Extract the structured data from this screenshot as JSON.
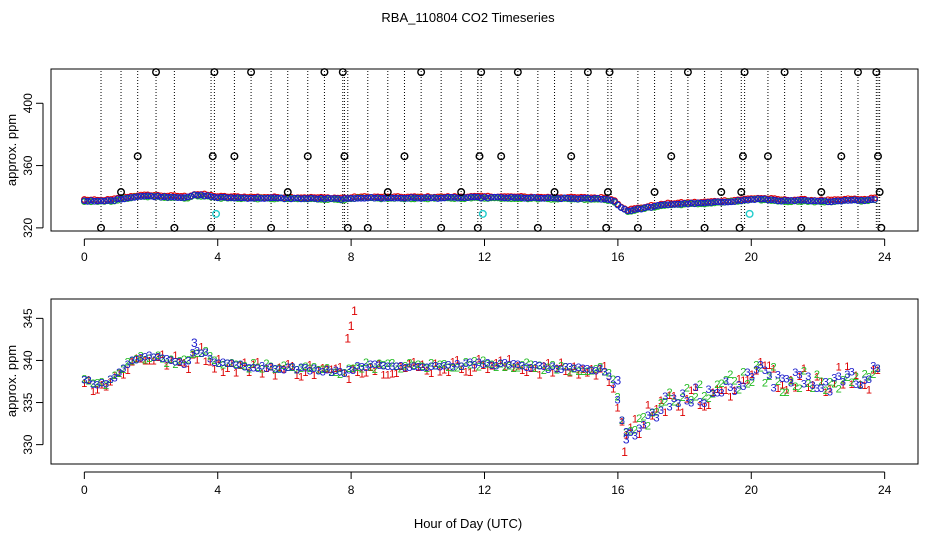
{
  "title": "RBA_110804  CO2 Timeseries",
  "xlabel": "Hour of Day (UTC)",
  "chart_data": [
    {
      "type": "scatter",
      "panel": "top",
      "ylabel": "approx. ppm",
      "xlim": [
        -1,
        25
      ],
      "ylim": [
        318,
        422
      ],
      "xticks": [
        0,
        4,
        8,
        12,
        16,
        20,
        24
      ],
      "xtick_labels": [
        "0",
        "4",
        "8",
        "12",
        "16",
        "20",
        "24"
      ],
      "yticks": [
        320,
        360,
        400
      ],
      "ytick_labels": [
        "320",
        "360",
        "400"
      ],
      "spike_times": [
        0.5,
        1.1,
        1.6,
        2.15,
        2.7,
        3.8,
        3.9,
        4.5,
        5.0,
        5.6,
        6.1,
        6.7,
        7.2,
        7.75,
        7.8,
        7.9,
        8.5,
        9.1,
        9.6,
        10.1,
        10.7,
        11.3,
        11.8,
        11.9,
        12.5,
        13.0,
        13.6,
        14.1,
        14.6,
        15.1,
        15.7,
        15.8,
        16.6,
        17.1,
        17.6,
        18.1,
        18.6,
        19.1,
        19.7,
        19.8,
        20.5,
        21.0,
        21.5,
        22.1,
        22.7,
        23.2,
        23.75,
        23.8,
        23.85
      ],
      "black_circles": [
        [
          0.5,
          320
        ],
        [
          1.1,
          343
        ],
        [
          1.6,
          366
        ],
        [
          2.15,
          420
        ],
        [
          2.7,
          320
        ],
        [
          3.8,
          320
        ],
        [
          3.85,
          366
        ],
        [
          3.9,
          420
        ],
        [
          4.5,
          366
        ],
        [
          5.0,
          420
        ],
        [
          5.6,
          320
        ],
        [
          6.1,
          343
        ],
        [
          6.7,
          366
        ],
        [
          7.2,
          420
        ],
        [
          7.75,
          420
        ],
        [
          7.8,
          366
        ],
        [
          7.9,
          320
        ],
        [
          8.5,
          320
        ],
        [
          9.1,
          343
        ],
        [
          9.6,
          366
        ],
        [
          10.1,
          420
        ],
        [
          10.7,
          320
        ],
        [
          11.3,
          343
        ],
        [
          11.8,
          320
        ],
        [
          11.85,
          366
        ],
        [
          11.9,
          420
        ],
        [
          12.5,
          366
        ],
        [
          13.0,
          420
        ],
        [
          13.6,
          320
        ],
        [
          14.1,
          343
        ],
        [
          14.6,
          366
        ],
        [
          15.1,
          420
        ],
        [
          15.65,
          320
        ],
        [
          15.7,
          343
        ],
        [
          15.75,
          420
        ],
        [
          16.6,
          320
        ],
        [
          17.1,
          343
        ],
        [
          17.6,
          366
        ],
        [
          18.1,
          420
        ],
        [
          18.6,
          320
        ],
        [
          19.1,
          343
        ],
        [
          19.65,
          320
        ],
        [
          19.7,
          343
        ],
        [
          19.75,
          366
        ],
        [
          19.8,
          420
        ],
        [
          20.5,
          366
        ],
        [
          21.0,
          420
        ],
        [
          21.5,
          320
        ],
        [
          22.1,
          343
        ],
        [
          22.7,
          366
        ],
        [
          23.2,
          420
        ],
        [
          23.75,
          420
        ],
        [
          23.8,
          366
        ],
        [
          23.85,
          343
        ],
        [
          23.9,
          320
        ]
      ],
      "cyan_circles": [
        [
          3.95,
          329
        ],
        [
          11.95,
          329
        ],
        [
          19.95,
          329
        ]
      ],
      "series_note": "Dense red (1), green (2) and blue (3) circle series near 336-340 ppm with a dip to ~327 ppm at hour 16"
    },
    {
      "type": "scatter",
      "panel": "bottom",
      "ylabel": "approx. ppm",
      "xlim": [
        -1,
        25
      ],
      "ylim": [
        327.7,
        347.3
      ],
      "xticks": [
        0,
        4,
        8,
        12,
        16,
        20,
        24
      ],
      "xtick_labels": [
        "0",
        "4",
        "8",
        "12",
        "16",
        "20",
        "24"
      ],
      "yticks": [
        330,
        335,
        340,
        345
      ],
      "ytick_labels": [
        "330",
        "335",
        "340",
        "345"
      ],
      "series": [
        {
          "name": "1",
          "marker": "1",
          "color": "#dd0000"
        },
        {
          "name": "2",
          "marker": "2",
          "color": "#22bb22"
        },
        {
          "name": "3",
          "marker": "3",
          "color": "#1a1acc"
        }
      ],
      "anchors": [
        [
          0.0,
          337.5
        ],
        [
          0.4,
          337.0
        ],
        [
          0.8,
          337.5
        ],
        [
          1.2,
          339.0
        ],
        [
          1.6,
          340.2
        ],
        [
          2.0,
          340.4
        ],
        [
          2.4,
          340.0
        ],
        [
          2.8,
          339.8
        ],
        [
          3.1,
          339.5
        ],
        [
          3.3,
          341.0
        ],
        [
          3.6,
          340.8
        ],
        [
          4.0,
          339.5
        ],
        [
          5.0,
          339.2
        ],
        [
          6.0,
          339.0
        ],
        [
          7.0,
          338.8
        ],
        [
          7.9,
          338.5
        ],
        [
          8.2,
          339.3
        ],
        [
          9.0,
          339.2
        ],
        [
          10.0,
          339.2
        ],
        [
          11.0,
          339.3
        ],
        [
          11.8,
          339.5
        ],
        [
          12.2,
          339.5
        ],
        [
          13.0,
          339.3
        ],
        [
          14.0,
          339.0
        ],
        [
          15.0,
          338.8
        ],
        [
          15.6,
          338.7
        ],
        [
          15.9,
          337.0
        ],
        [
          16.1,
          333.0
        ],
        [
          16.3,
          331.0
        ],
        [
          16.6,
          332.0
        ],
        [
          17.0,
          333.5
        ],
        [
          17.5,
          335.0
        ],
        [
          18.0,
          335.5
        ],
        [
          18.5,
          335.8
        ],
        [
          19.0,
          336.5
        ],
        [
          19.5,
          337.2
        ],
        [
          19.9,
          338.0
        ],
        [
          20.2,
          338.5
        ],
        [
          20.6,
          338.0
        ],
        [
          21.0,
          337.3
        ],
        [
          21.5,
          337.5
        ],
        [
          22.0,
          337.0
        ],
        [
          22.5,
          337.2
        ],
        [
          23.0,
          338.0
        ],
        [
          23.3,
          337.5
        ],
        [
          23.7,
          338.5
        ]
      ]
    }
  ]
}
